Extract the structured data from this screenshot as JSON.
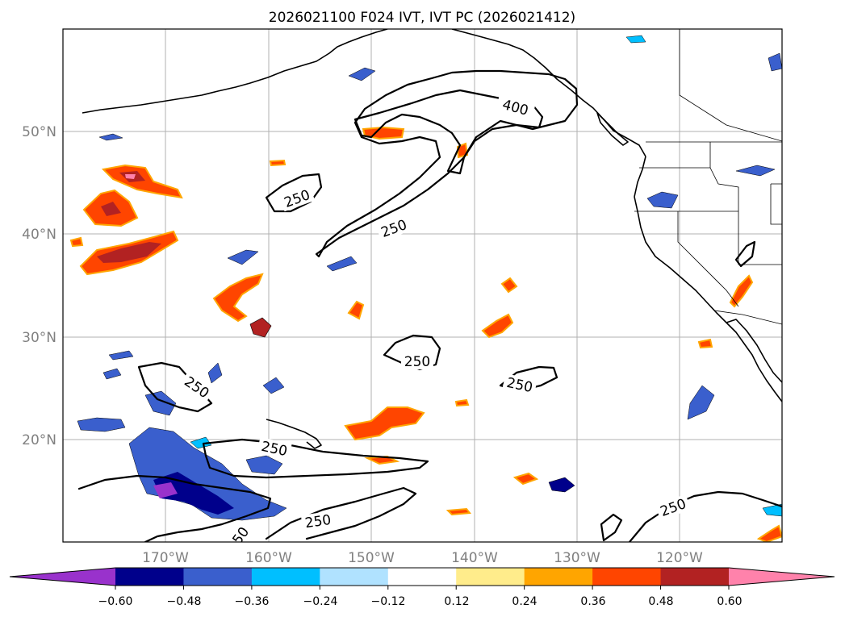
{
  "title": "2026021100 F024 IVT, IVT PC (2026021412)",
  "lat_labels": [
    "50°N",
    "40°N",
    "30°N",
    "20°N"
  ],
  "lon_labels": [
    "170°W",
    "160°W",
    "150°W",
    "140°W",
    "130°W",
    "120°W"
  ],
  "contour_labels": [
    "400",
    "250",
    "250",
    "250",
    "250",
    "250",
    "250",
    "250",
    "250",
    "50"
  ],
  "colorbar": {
    "tick_labels": [
      "−0.60",
      "−0.48",
      "−0.36",
      "−0.24",
      "−0.12",
      "0.12",
      "0.24",
      "0.36",
      "0.48",
      "0.60"
    ],
    "colors": [
      "#9932cc",
      "#00008b",
      "#3a5fcd",
      "#00bfff",
      "#b0e2ff",
      "#ffffff",
      "#ffec8b",
      "#ffa500",
      "#ff4500",
      "#b22222",
      "#ff82ab"
    ]
  }
}
